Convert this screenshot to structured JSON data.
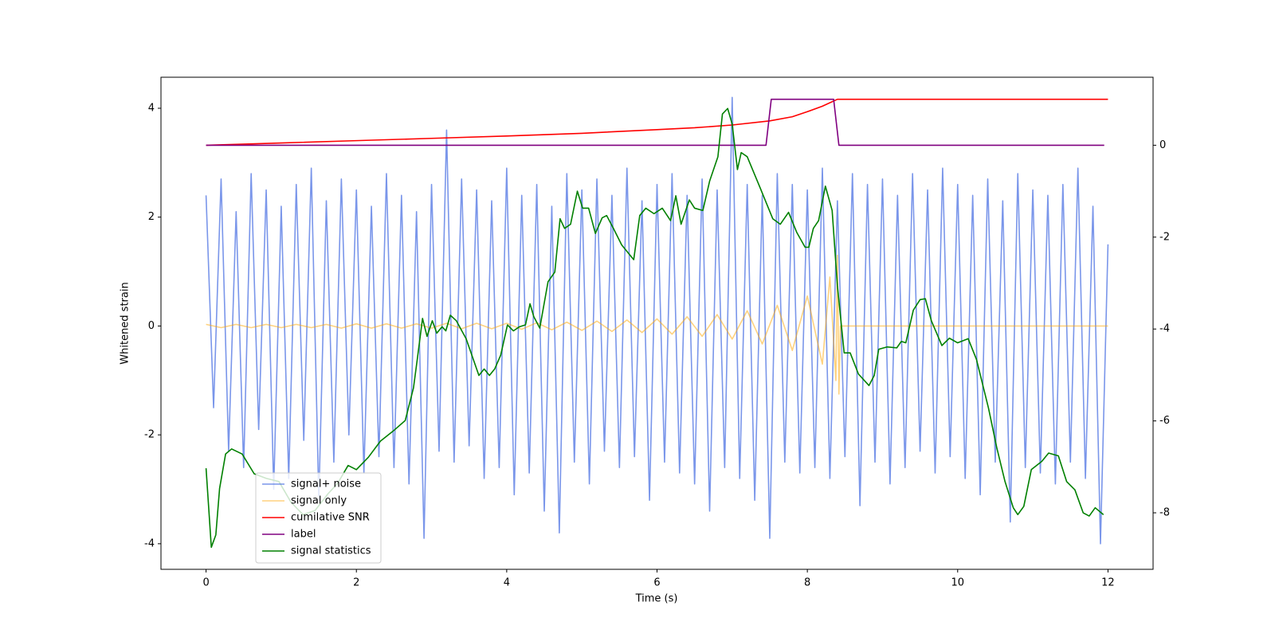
{
  "chart_data": {
    "type": "line",
    "xlabel": "Time (s)",
    "ylabel": "Whitened strain",
    "xlim": [
      -0.6,
      12.6
    ],
    "ylim": [
      -4.47,
      4.57
    ],
    "y2lim": [
      -9.23,
      1.48
    ],
    "xticks": [
      0,
      2,
      4,
      6,
      8,
      10,
      12
    ],
    "yticks": [
      -4,
      -2,
      0,
      2,
      4
    ],
    "y2ticks": [
      -8,
      -6,
      -4,
      -2,
      0
    ],
    "legend": "lower left",
    "grid": false,
    "series": [
      {
        "name": "signal+ noise",
        "color": "#4169e1",
        "alpha": 0.7,
        "x": [
          0,
          0.1,
          0.2,
          0.3,
          0.4,
          0.5,
          0.6,
          0.7,
          0.8,
          0.9,
          1,
          1.1,
          1.2,
          1.3,
          1.4,
          1.5,
          1.6,
          1.7,
          1.8,
          1.9,
          2,
          2.1,
          2.2,
          2.3,
          2.4,
          2.5,
          2.6,
          2.7,
          2.8,
          2.9,
          3,
          3.1,
          3.2,
          3.3,
          3.4,
          3.5,
          3.6,
          3.7,
          3.8,
          3.9,
          4,
          4.1,
          4.2,
          4.3,
          4.4,
          4.5,
          4.6,
          4.7,
          4.8,
          4.9,
          5,
          5.1,
          5.2,
          5.3,
          5.4,
          5.5,
          5.6,
          5.7,
          5.8,
          5.9,
          6,
          6.1,
          6.2,
          6.3,
          6.4,
          6.5,
          6.6,
          6.7,
          6.8,
          6.9,
          7,
          7.1,
          7.2,
          7.3,
          7.4,
          7.5,
          7.6,
          7.7,
          7.8,
          7.9,
          8,
          8.1,
          8.2,
          8.3,
          8.4,
          8.5,
          8.6,
          8.7,
          8.8,
          8.9,
          9,
          9.1,
          9.2,
          9.3,
          9.4,
          9.5,
          9.6,
          9.7,
          9.8,
          9.9,
          10,
          10.1,
          10.2,
          10.3,
          10.4,
          10.5,
          10.6,
          10.7,
          10.8,
          10.9,
          11,
          11.1,
          11.2,
          11.3,
          11.4,
          11.5,
          11.6,
          11.7,
          11.8,
          11.9,
          12
        ],
        "values": [
          2.4,
          -1.5,
          2.7,
          -2.3,
          2.1,
          -2.6,
          2.8,
          -1.9,
          2.5,
          -3.0,
          2.2,
          -2.8,
          2.6,
          -2.1,
          2.9,
          -3.2,
          2.3,
          -2.5,
          2.7,
          -2.0,
          2.5,
          -2.7,
          2.2,
          -2.4,
          2.8,
          -2.6,
          2.4,
          -2.9,
          2.1,
          -3.9,
          2.6,
          -2.3,
          3.6,
          -2.5,
          2.7,
          -2.2,
          2.5,
          -2.8,
          2.3,
          -2.6,
          2.9,
          -3.1,
          2.4,
          -2.7,
          2.6,
          -3.4,
          2.2,
          -3.8,
          2.8,
          -2.5,
          2.5,
          -2.9,
          2.7,
          -2.3,
          2.4,
          -2.6,
          2.9,
          -2.4,
          2.3,
          -3.2,
          2.6,
          -2.5,
          2.8,
          -2.7,
          2.4,
          -2.9,
          2.7,
          -3.4,
          2.5,
          -2.6,
          4.2,
          -2.8,
          2.6,
          -3.2,
          2.4,
          -3.9,
          2.8,
          -2.5,
          2.6,
          -2.7,
          2.5,
          -2.6,
          2.9,
          -2.8,
          2.3,
          -2.4,
          2.8,
          -3.3,
          2.6,
          -2.5,
          2.7,
          -2.9,
          2.4,
          -2.6,
          2.8,
          -2.3,
          2.5,
          -2.7,
          2.9,
          -2.4,
          2.6,
          -2.8,
          2.4,
          -3.1,
          2.7,
          -2.5,
          2.3,
          -3.6,
          2.8,
          -2.6,
          2.5,
          -2.7,
          2.4,
          -2.9,
          2.6,
          -2.5,
          2.9,
          -2.8,
          2.2,
          -4.0,
          1.5
        ]
      },
      {
        "name": "signal only",
        "color": "#ffa500",
        "alpha": 0.5,
        "x": [
          0,
          0.2,
          0.4,
          0.6,
          0.8,
          1,
          1.2,
          1.4,
          1.6,
          1.8,
          2,
          2.2,
          2.4,
          2.6,
          2.8,
          3,
          3.2,
          3.4,
          3.6,
          3.8,
          4,
          4.2,
          4.4,
          4.6,
          4.8,
          5,
          5.2,
          5.4,
          5.6,
          5.8,
          6,
          6.2,
          6.4,
          6.6,
          6.8,
          7,
          7.2,
          7.4,
          7.6,
          7.8,
          8,
          8.2,
          8.3,
          8.38,
          8.4,
          8.42,
          8.44,
          12
        ],
        "values": [
          0.03,
          -0.03,
          0.03,
          -0.03,
          0.03,
          -0.03,
          0.03,
          -0.03,
          0.03,
          -0.04,
          0.04,
          -0.04,
          0.04,
          -0.04,
          0.04,
          -0.04,
          0.05,
          -0.05,
          0.05,
          -0.05,
          0.05,
          -0.06,
          0.06,
          -0.07,
          0.07,
          -0.08,
          0.09,
          -0.1,
          0.11,
          -0.12,
          0.13,
          -0.15,
          0.17,
          -0.19,
          0.21,
          -0.24,
          0.28,
          -0.33,
          0.38,
          -0.45,
          0.55,
          -0.7,
          0.9,
          -1.0,
          1.3,
          -1.25,
          0,
          0
        ]
      },
      {
        "name": "cumilative SNR",
        "color": "#ff0000",
        "alpha": 1,
        "axis": "y2",
        "x": [
          0,
          1,
          2,
          3,
          4,
          5,
          6,
          6.5,
          7,
          7.5,
          7.8,
          8,
          8.2,
          8.4,
          12
        ],
        "values": [
          0,
          0.05,
          0.1,
          0.15,
          0.2,
          0.26,
          0.34,
          0.38,
          0.44,
          0.53,
          0.62,
          0.73,
          0.85,
          1.0,
          1.0
        ]
      },
      {
        "name": "label",
        "color": "#800080",
        "alpha": 1,
        "axis": "y2",
        "x": [
          0,
          7.45,
          7.52,
          8.35,
          8.42,
          11.95
        ],
        "values": [
          0,
          0,
          1,
          1,
          0,
          0
        ]
      },
      {
        "name": "signal statistics",
        "color": "#008000",
        "alpha": 1,
        "axis": "y2",
        "x": [
          0,
          0.07,
          0.13,
          0.18,
          0.26,
          0.34,
          0.48,
          0.64,
          0.8,
          0.97,
          1.13,
          1.29,
          1.45,
          1.62,
          1.75,
          1.89,
          2.0,
          2.16,
          2.32,
          2.49,
          2.65,
          2.76,
          2.81,
          2.88,
          2.94,
          3.01,
          3.07,
          3.14,
          3.19,
          3.25,
          3.33,
          3.46,
          3.63,
          3.7,
          3.77,
          3.84,
          3.92,
          4.01,
          4.09,
          4.17,
          4.25,
          4.31,
          4.36,
          4.44,
          4.55,
          4.64,
          4.71,
          4.77,
          4.85,
          4.94,
          5.01,
          5.09,
          5.18,
          5.27,
          5.33,
          5.42,
          5.53,
          5.69,
          5.77,
          5.85,
          5.96,
          6.07,
          6.18,
          6.25,
          6.32,
          6.43,
          6.5,
          6.61,
          6.7,
          6.81,
          6.87,
          6.94,
          7.0,
          7.07,
          7.12,
          7.2,
          7.37,
          7.54,
          7.64,
          7.75,
          7.86,
          7.97,
          8.02,
          8.08,
          8.15,
          8.24,
          8.33,
          8.4,
          8.49,
          8.57,
          8.68,
          8.82,
          8.89,
          8.95,
          9.06,
          9.19,
          9.25,
          9.31,
          9.41,
          9.5,
          9.57,
          9.65,
          9.79,
          9.89,
          10.0,
          10.14,
          10.25,
          10.41,
          10.52,
          10.63,
          10.74,
          10.8,
          10.88,
          10.98,
          11.12,
          11.21,
          11.34,
          11.45,
          11.56,
          11.67,
          11.75,
          11.83,
          11.94
        ],
        "values": [
          -7.03,
          -8.75,
          -8.48,
          -7.47,
          -6.72,
          -6.61,
          -6.72,
          -7.15,
          -7.25,
          -7.32,
          -7.77,
          -8.04,
          -7.95,
          -7.59,
          -7.36,
          -6.97,
          -7.06,
          -6.79,
          -6.44,
          -6.22,
          -5.99,
          -5.28,
          -4.66,
          -3.77,
          -4.16,
          -3.82,
          -4.09,
          -3.95,
          -4.04,
          -3.7,
          -3.82,
          -4.21,
          -5.01,
          -4.87,
          -5.01,
          -4.87,
          -4.57,
          -3.91,
          -4.04,
          -3.95,
          -3.91,
          -3.45,
          -3.73,
          -3.98,
          -2.97,
          -2.76,
          -1.6,
          -1.81,
          -1.72,
          -1.0,
          -1.37,
          -1.37,
          -1.92,
          -1.58,
          -1.53,
          -1.81,
          -2.17,
          -2.49,
          -1.53,
          -1.37,
          -1.49,
          -1.37,
          -1.64,
          -1.1,
          -1.72,
          -1.19,
          -1.37,
          -1.42,
          -0.78,
          -0.25,
          0.68,
          0.8,
          0.46,
          -0.53,
          -0.16,
          -0.25,
          -0.92,
          -1.6,
          -1.72,
          -1.46,
          -1.9,
          -2.22,
          -2.22,
          -1.81,
          -1.64,
          -0.89,
          -1.42,
          -3.06,
          -4.52,
          -4.52,
          -4.98,
          -5.23,
          -5.01,
          -4.44,
          -4.39,
          -4.41,
          -4.27,
          -4.3,
          -3.59,
          -3.36,
          -3.34,
          -3.82,
          -4.36,
          -4.2,
          -4.3,
          -4.21,
          -4.66,
          -5.72,
          -6.58,
          -7.32,
          -7.89,
          -8.04,
          -7.86,
          -7.06,
          -6.88,
          -6.7,
          -6.76,
          -7.32,
          -7.5,
          -8.0,
          -8.07,
          -7.89,
          -8.04
        ]
      }
    ]
  }
}
